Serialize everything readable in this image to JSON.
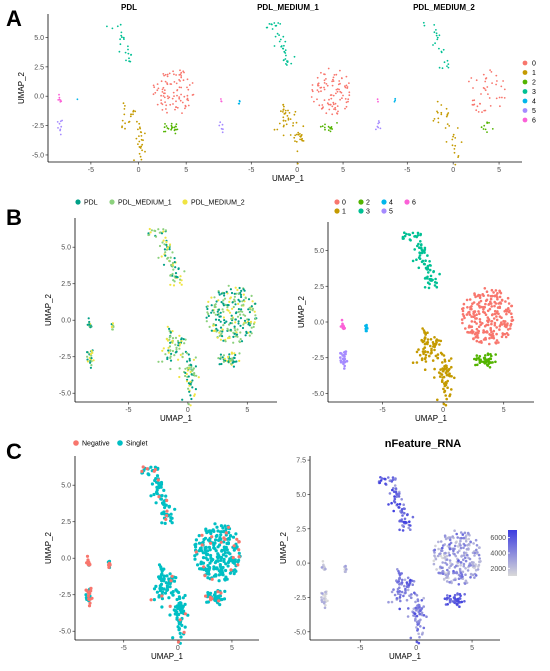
{
  "panel_labels": [
    "A",
    "B",
    "C"
  ],
  "colors": {
    "cluster": {
      "0": "#F8766D",
      "1": "#C49A00",
      "2": "#53B400",
      "3": "#00C094",
      "4": "#00B6EB",
      "5": "#A58AFF",
      "6": "#FB61D7"
    },
    "sample": {
      "PDL": "#00A087",
      "PDL_MEDIUM_1": "#8CD17D",
      "PDL_MEDIUM_2": "#F0E442"
    },
    "hashtag": {
      "Negative": "#F8766D",
      "Singlet": "#00BFC4"
    },
    "feature_low": "#D9D9D9",
    "feature_high": "#3C3CE0"
  },
  "chart_data": [
    {
      "id": "A",
      "type": "scatter",
      "facets": [
        "PDL",
        "PDL_MEDIUM_1",
        "PDL_MEDIUM_2"
      ],
      "xlabel": "UMAP_1",
      "ylabel": "UMAP_2",
      "xticks": [
        -5,
        0,
        5
      ],
      "yticks": [
        -5.0,
        -2.5,
        0.0,
        2.5,
        5.0
      ],
      "xlim": [
        -9.5,
        7.5
      ],
      "ylim": [
        -5.6,
        7.0
      ],
      "legend": {
        "position": "right",
        "title": "",
        "entries": [
          "0",
          "1",
          "2",
          "3",
          "4",
          "5",
          "6"
        ]
      },
      "color_by": "cluster",
      "clusters": [
        {
          "name": "0",
          "center": [
            3.6,
            0.3
          ],
          "spread": [
            1.3,
            1.7
          ]
        },
        {
          "name": "1",
          "center": [
            -0.3,
            -2.8
          ],
          "spread": [
            0.6,
            1.3
          ]
        },
        {
          "name": "2",
          "center": [
            3.6,
            -2.7
          ],
          "spread": [
            0.7,
            0.4
          ]
        },
        {
          "name": "3",
          "center": [
            -1.6,
            4.6
          ],
          "spread": [
            0.6,
            1.3
          ]
        },
        {
          "name": "4",
          "center": [
            -6.3,
            -0.4
          ],
          "spread": [
            0.2,
            0.2
          ]
        },
        {
          "name": "5",
          "center": [
            -8.2,
            -2.6
          ],
          "spread": [
            0.3,
            0.6
          ]
        },
        {
          "name": "6",
          "center": [
            -8.2,
            -0.3
          ],
          "spread": [
            0.2,
            0.25
          ]
        }
      ]
    },
    {
      "id": "B1",
      "type": "scatter",
      "xlabel": "UMAP_1",
      "ylabel": "UMAP_2",
      "xticks": [
        -5,
        0,
        5
      ],
      "yticks": [
        -5.0,
        -2.5,
        0.0,
        2.5,
        5.0
      ],
      "xlim": [
        -9.5,
        7.5
      ],
      "ylim": [
        -5.6,
        7.0
      ],
      "legend": {
        "position": "top",
        "title": "",
        "entries": [
          "PDL",
          "PDL_MEDIUM_1",
          "PDL_MEDIUM_2"
        ]
      },
      "color_by": "sample",
      "series": [
        {
          "name": "PDL"
        },
        {
          "name": "PDL_MEDIUM_1"
        },
        {
          "name": "PDL_MEDIUM_2"
        }
      ]
    },
    {
      "id": "B2",
      "type": "scatter",
      "xlabel": "UMAP_1",
      "ylabel": "UMAP_2",
      "xticks": [
        -5,
        0,
        5
      ],
      "yticks": [
        -5.0,
        -2.5,
        0.0,
        2.5,
        5.0
      ],
      "xlim": [
        -9.5,
        7.5
      ],
      "ylim": [
        -5.6,
        7.0
      ],
      "legend": {
        "position": "top",
        "title": "",
        "entries": [
          "0",
          "1",
          "2",
          "3",
          "4",
          "5",
          "6"
        ]
      },
      "color_by": "cluster"
    },
    {
      "id": "C1",
      "type": "scatter",
      "xlabel": "UMAP_1",
      "ylabel": "UMAP_2",
      "xticks": [
        -5,
        0,
        5
      ],
      "yticks": [
        -5.0,
        -2.5,
        0.0,
        2.5,
        5.0
      ],
      "xlim": [
        -9.5,
        7.5
      ],
      "ylim": [
        -5.6,
        7.0
      ],
      "legend": {
        "position": "top",
        "title": "",
        "entries": [
          "Negative",
          "Singlet"
        ]
      },
      "color_by": "hashtag",
      "series": [
        {
          "name": "Negative"
        },
        {
          "name": "Singlet"
        }
      ]
    },
    {
      "id": "C2",
      "type": "scatter",
      "title": "nFeature_RNA",
      "xlabel": "UMAP_1",
      "ylabel": "UMAP_2",
      "xticks": [
        -5,
        0,
        5
      ],
      "yticks": [
        -5.0,
        -2.5,
        0.0,
        2.5,
        5.0,
        7.5
      ],
      "xlim": [
        -9.5,
        7.5
      ],
      "ylim": [
        -5.6,
        7.8
      ],
      "legend": {
        "position": "right",
        "title": "",
        "colorbar_ticks": [
          2000,
          4000,
          6000
        ],
        "range": [
          1000,
          7000
        ]
      },
      "color_by": "nFeature_RNA"
    }
  ]
}
